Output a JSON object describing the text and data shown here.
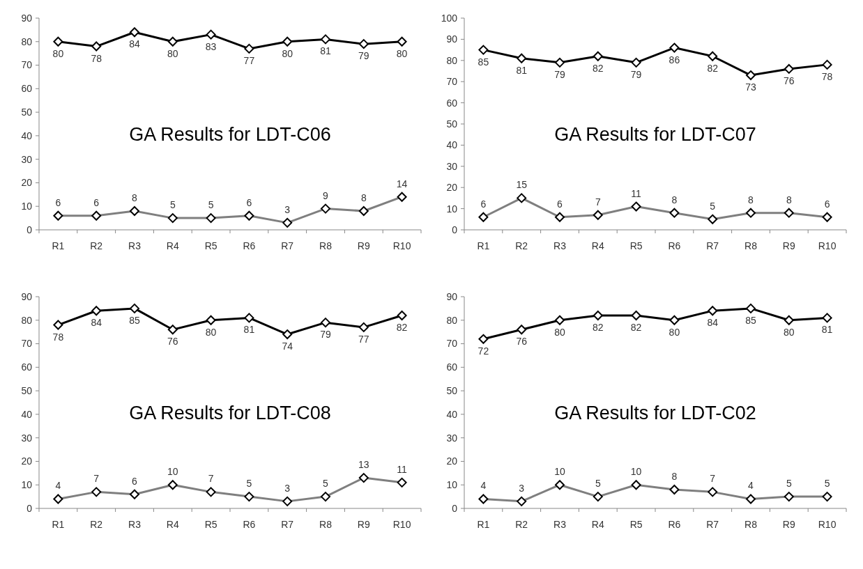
{
  "chart_data": [
    {
      "type": "line",
      "title": "GA Results for LDT-C06",
      "categories": [
        "R1",
        "R2",
        "R3",
        "R4",
        "R5",
        "R6",
        "R7",
        "R8",
        "R9",
        "R10"
      ],
      "series": [
        {
          "color": "#000000",
          "values": [
            80,
            78,
            84,
            80,
            83,
            77,
            80,
            81,
            79,
            80
          ]
        },
        {
          "color": "#7f7f7f",
          "values": [
            6,
            6,
            8,
            5,
            5,
            6,
            3,
            9,
            8,
            14
          ]
        }
      ],
      "ylim": [
        0,
        90
      ],
      "yticks": [
        0,
        10,
        20,
        30,
        40,
        50,
        60,
        70,
        80,
        90
      ],
      "marker": "diamond",
      "data_labels": true
    },
    {
      "type": "line",
      "title": "GA Results for LDT-C07",
      "categories": [
        "R1",
        "R2",
        "R3",
        "R4",
        "R5",
        "R6",
        "R7",
        "R8",
        "R9",
        "R10"
      ],
      "series": [
        {
          "color": "#000000",
          "values": [
            85,
            81,
            79,
            82,
            79,
            86,
            82,
            73,
            76,
            78
          ]
        },
        {
          "color": "#7f7f7f",
          "values": [
            6,
            15,
            6,
            7,
            11,
            8,
            5,
            8,
            8,
            6
          ]
        }
      ],
      "ylim": [
        0,
        100
      ],
      "yticks": [
        0,
        10,
        20,
        30,
        40,
        50,
        60,
        70,
        80,
        90,
        100
      ],
      "marker": "diamond",
      "data_labels": true
    },
    {
      "type": "line",
      "title": "GA Results for LDT-C08",
      "categories": [
        "R1",
        "R2",
        "R3",
        "R4",
        "R5",
        "R6",
        "R7",
        "R8",
        "R9",
        "R10"
      ],
      "series": [
        {
          "color": "#000000",
          "values": [
            78,
            84,
            85,
            76,
            80,
            81,
            74,
            79,
            77,
            82
          ]
        },
        {
          "color": "#7f7f7f",
          "values": [
            4,
            7,
            6,
            10,
            7,
            5,
            3,
            5,
            13,
            11
          ]
        }
      ],
      "ylim": [
        0,
        90
      ],
      "yticks": [
        0,
        10,
        20,
        30,
        40,
        50,
        60,
        70,
        80,
        90
      ],
      "marker": "diamond",
      "data_labels": true
    },
    {
      "type": "line",
      "title": "GA Results for LDT-C02",
      "categories": [
        "R1",
        "R2",
        "R3",
        "R4",
        "R5",
        "R6",
        "R7",
        "R8",
        "R9",
        "R10"
      ],
      "series": [
        {
          "color": "#000000",
          "values": [
            72,
            76,
            80,
            82,
            82,
            80,
            84,
            85,
            80,
            81
          ]
        },
        {
          "color": "#7f7f7f",
          "values": [
            4,
            3,
            10,
            5,
            10,
            8,
            7,
            4,
            5,
            5
          ]
        }
      ],
      "ylim": [
        0,
        90
      ],
      "yticks": [
        0,
        10,
        20,
        30,
        40,
        50,
        60,
        70,
        80,
        90
      ],
      "marker": "diamond",
      "data_labels": true
    }
  ]
}
